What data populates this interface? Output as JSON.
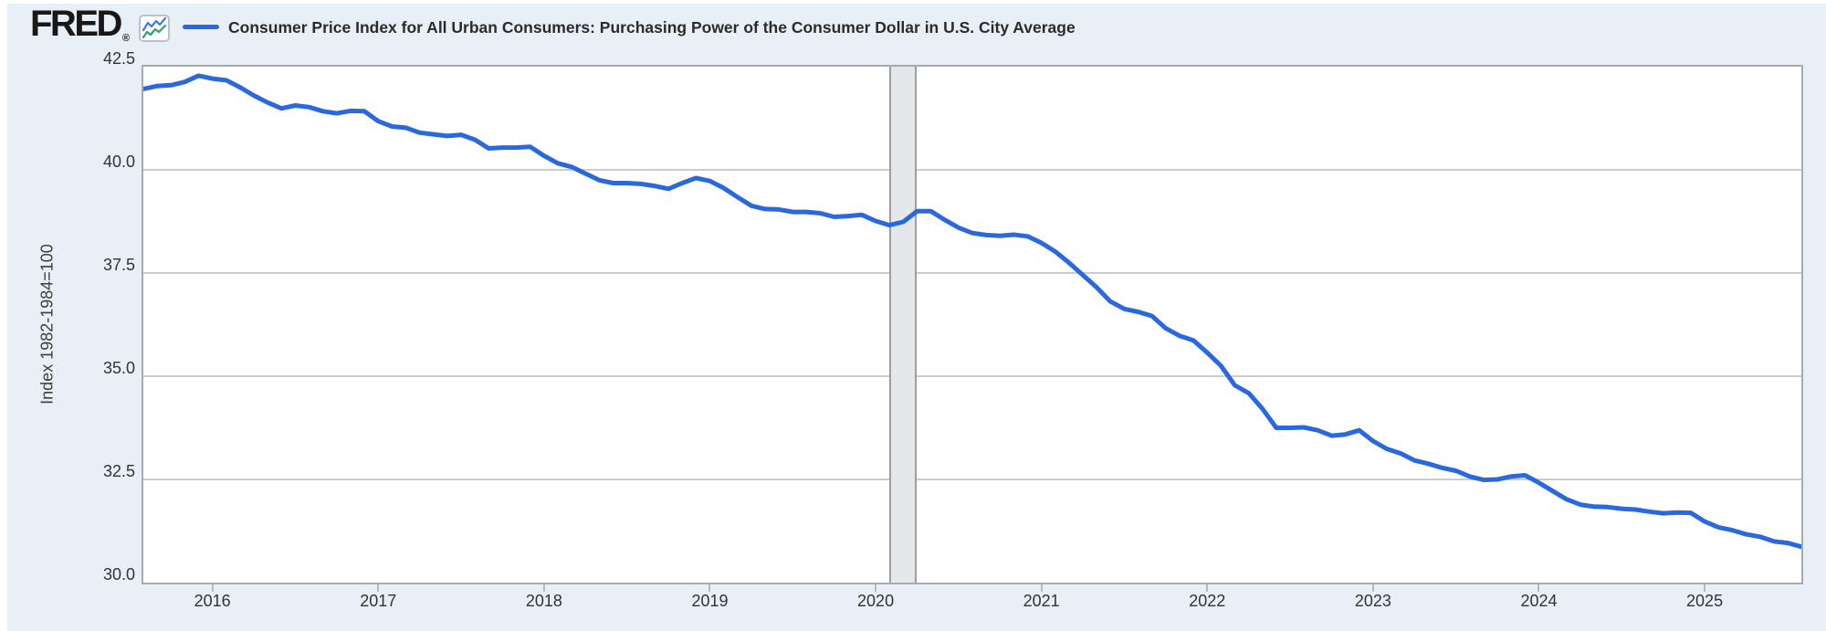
{
  "header": {
    "logo_text": "FRED",
    "registered_mark": "®",
    "series_title": "Consumer Price Index for All Urban Consumers: Purchasing Power of the Consumer Dollar in U.S. City Average"
  },
  "colors": {
    "accent_line": "#2a69dd",
    "widget_background": "#e9eff6",
    "plot_background": "#ffffff",
    "gridline": "#cccccc",
    "plot_border": "#a6abb0",
    "recession_band_fill": "#e5e8eb",
    "recession_band_border": "#9a9fa5",
    "icon_blue": "#3b7ddd",
    "icon_green": "#2e9e7a",
    "text": "#333333"
  },
  "chart_data": {
    "type": "line",
    "title": "Consumer Price Index for All Urban Consumers: Purchasing Power of the Consumer Dollar in U.S. City Average",
    "xlabel": "",
    "ylabel": "Index 1982-1984=100",
    "ylim": [
      30.0,
      42.5
    ],
    "y_ticks": [
      42.5,
      40.0,
      37.5,
      35.0,
      32.5,
      30.0
    ],
    "y_tick_labels": [
      "42.5",
      "40.0",
      "37.5",
      "35.0",
      "32.5",
      "30.0"
    ],
    "x_tick_labels": [
      "2016",
      "2017",
      "2018",
      "2019",
      "2020",
      "2021",
      "2022",
      "2023",
      "2024",
      "2025"
    ],
    "xlim_decimal_years": [
      2015.5833,
      2025.5833
    ],
    "grid": "horizontal-only",
    "legend_position": "top",
    "recession_band": {
      "start_decimal_year": 2020.0833,
      "end_decimal_year": 2020.25
    },
    "frequency": "monthly",
    "start_year": 2015,
    "start_month": 8,
    "values": [
      41.96,
      42.03,
      42.05,
      42.13,
      42.28,
      42.21,
      42.17,
      42.0,
      41.8,
      41.63,
      41.49,
      41.56,
      41.52,
      41.42,
      41.37,
      41.43,
      41.42,
      41.18,
      41.05,
      41.02,
      40.9,
      40.86,
      40.82,
      40.85,
      40.73,
      40.52,
      40.54,
      40.54,
      40.56,
      40.34,
      40.16,
      40.07,
      39.91,
      39.75,
      39.68,
      39.68,
      39.66,
      39.61,
      39.54,
      39.68,
      39.8,
      39.73,
      39.56,
      39.34,
      39.13,
      39.05,
      39.04,
      38.98,
      38.98,
      38.95,
      38.86,
      38.88,
      38.91,
      38.76,
      38.66,
      38.74,
      39.0,
      39.0,
      38.79,
      38.6,
      38.47,
      38.42,
      38.4,
      38.43,
      38.39,
      38.23,
      38.02,
      37.75,
      37.45,
      37.15,
      36.81,
      36.63,
      36.56,
      36.46,
      36.16,
      35.98,
      35.87,
      35.57,
      35.25,
      34.78,
      34.59,
      34.21,
      33.75,
      33.75,
      33.76,
      33.69,
      33.56,
      33.59,
      33.69,
      33.43,
      33.24,
      33.13,
      32.96,
      32.88,
      32.78,
      32.71,
      32.57,
      32.49,
      32.5,
      32.57,
      32.6,
      32.42,
      32.22,
      32.02,
      31.89,
      31.84,
      31.83,
      31.79,
      31.77,
      31.72,
      31.68,
      31.7,
      31.69,
      31.48,
      31.34,
      31.27,
      31.17,
      31.11,
      31.0,
      30.96,
      30.87
    ]
  }
}
